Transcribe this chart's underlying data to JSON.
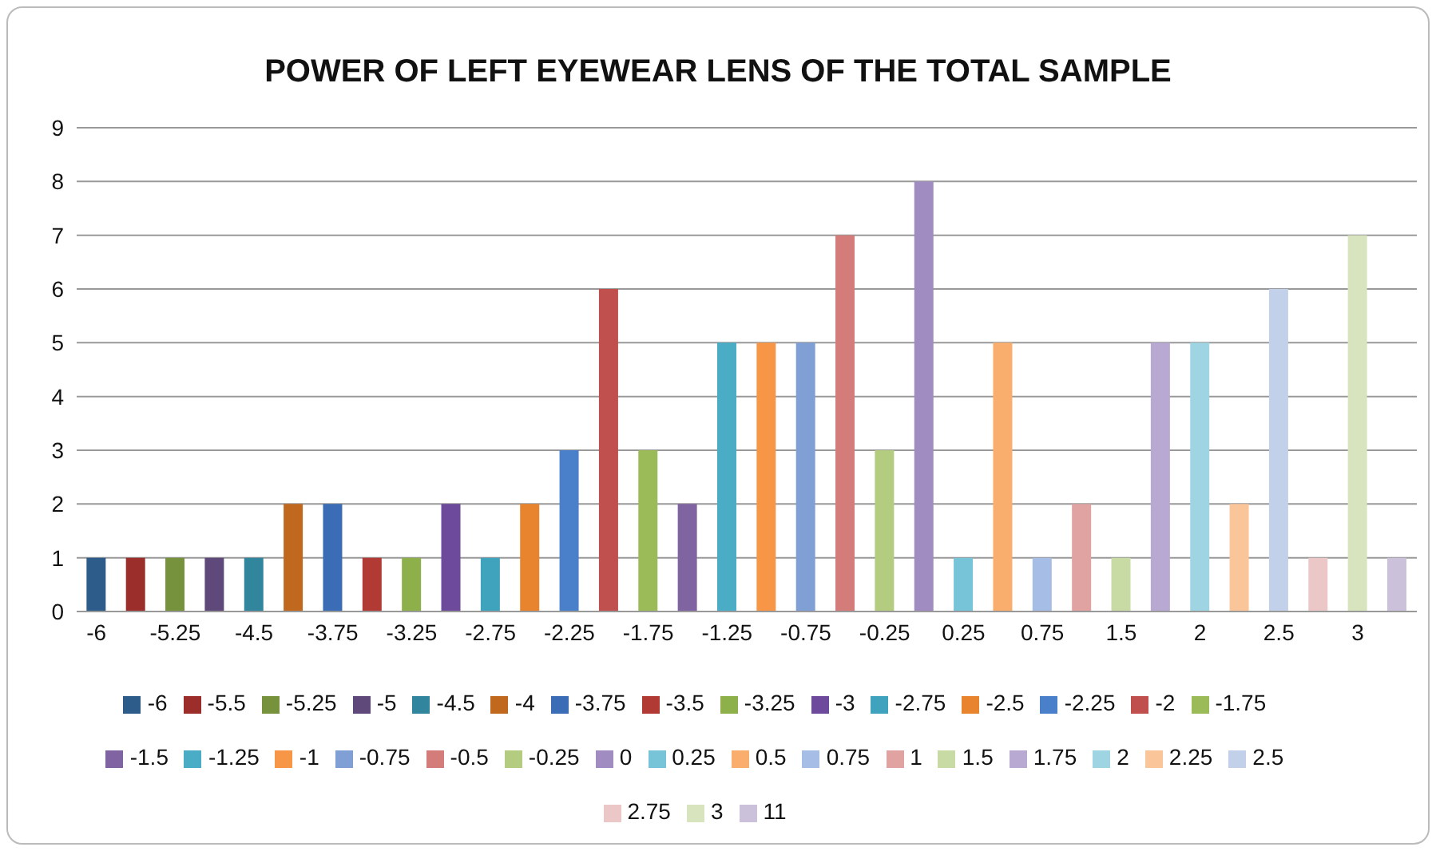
{
  "chart_data": {
    "type": "bar",
    "title": "POWER OF LEFT EYEWEAR LENS OF THE TOTAL SAMPLE",
    "categories": [
      "-6",
      null,
      "-5.25",
      null,
      "-4.5",
      null,
      "-3.75",
      null,
      "-3.25",
      null,
      "-2.75",
      null,
      "-2.25",
      null,
      "-1.75",
      null,
      "-1.25",
      null,
      "-0.75",
      null,
      "-0.25",
      null,
      "0.25",
      null,
      "0.75",
      null,
      "1.5",
      null,
      "2",
      null,
      "2.5",
      null,
      "3",
      null
    ],
    "series": [
      {
        "name": "-6",
        "color": "#2e5c8a",
        "values": [
          1,
          null,
          null,
          null,
          null,
          null,
          null,
          null,
          null,
          null,
          null,
          null,
          null,
          null,
          null,
          null,
          null,
          null,
          null,
          null,
          null,
          null,
          null,
          null,
          null,
          null,
          null,
          null,
          null,
          null,
          null,
          null,
          null,
          null
        ]
      },
      {
        "name": "-5.5",
        "color": "#9b2d2a",
        "values": [
          null,
          1,
          null,
          null,
          null,
          null,
          null,
          null,
          null,
          null,
          null,
          null,
          null,
          null,
          null,
          null,
          null,
          null,
          null,
          null,
          null,
          null,
          null,
          null,
          null,
          null,
          null,
          null,
          null,
          null,
          null,
          null,
          null,
          null
        ]
      },
      {
        "name": "-5.25",
        "color": "#76923c",
        "values": [
          null,
          null,
          1,
          null,
          null,
          null,
          null,
          null,
          null,
          null,
          null,
          null,
          null,
          null,
          null,
          null,
          null,
          null,
          null,
          null,
          null,
          null,
          null,
          null,
          null,
          null,
          null,
          null,
          null,
          null,
          null,
          null,
          null,
          null
        ]
      },
      {
        "name": "-5",
        "color": "#5f497a",
        "values": [
          null,
          null,
          null,
          1,
          null,
          null,
          null,
          null,
          null,
          null,
          null,
          null,
          null,
          null,
          null,
          null,
          null,
          null,
          null,
          null,
          null,
          null,
          null,
          null,
          null,
          null,
          null,
          null,
          null,
          null,
          null,
          null,
          null,
          null
        ]
      },
      {
        "name": "-4.5",
        "color": "#31859c",
        "values": [
          null,
          null,
          null,
          null,
          1,
          null,
          null,
          null,
          null,
          null,
          null,
          null,
          null,
          null,
          null,
          null,
          null,
          null,
          null,
          null,
          null,
          null,
          null,
          null,
          null,
          null,
          null,
          null,
          null,
          null,
          null,
          null,
          null,
          null
        ]
      },
      {
        "name": "-4",
        "color": "#c0681e",
        "values": [
          null,
          null,
          null,
          null,
          null,
          2,
          null,
          null,
          null,
          null,
          null,
          null,
          null,
          null,
          null,
          null,
          null,
          null,
          null,
          null,
          null,
          null,
          null,
          null,
          null,
          null,
          null,
          null,
          null,
          null,
          null,
          null,
          null,
          null
        ]
      },
      {
        "name": "-3.75",
        "color": "#3a6db5",
        "values": [
          null,
          null,
          null,
          null,
          null,
          null,
          2,
          null,
          null,
          null,
          null,
          null,
          null,
          null,
          null,
          null,
          null,
          null,
          null,
          null,
          null,
          null,
          null,
          null,
          null,
          null,
          null,
          null,
          null,
          null,
          null,
          null,
          null,
          null
        ]
      },
      {
        "name": "-3.5",
        "color": "#b23a35",
        "values": [
          null,
          null,
          null,
          null,
          null,
          null,
          null,
          1,
          null,
          null,
          null,
          null,
          null,
          null,
          null,
          null,
          null,
          null,
          null,
          null,
          null,
          null,
          null,
          null,
          null,
          null,
          null,
          null,
          null,
          null,
          null,
          null,
          null,
          null
        ]
      },
      {
        "name": "-3.25",
        "color": "#8db04a",
        "values": [
          null,
          null,
          null,
          null,
          null,
          null,
          null,
          null,
          1,
          null,
          null,
          null,
          null,
          null,
          null,
          null,
          null,
          null,
          null,
          null,
          null,
          null,
          null,
          null,
          null,
          null,
          null,
          null,
          null,
          null,
          null,
          null,
          null,
          null
        ]
      },
      {
        "name": "-3",
        "color": "#6e4a9c",
        "values": [
          null,
          null,
          null,
          null,
          null,
          null,
          null,
          null,
          null,
          2,
          null,
          null,
          null,
          null,
          null,
          null,
          null,
          null,
          null,
          null,
          null,
          null,
          null,
          null,
          null,
          null,
          null,
          null,
          null,
          null,
          null,
          null,
          null,
          null
        ]
      },
      {
        "name": "-2.75",
        "color": "#3fa3bd",
        "values": [
          null,
          null,
          null,
          null,
          null,
          null,
          null,
          null,
          null,
          null,
          1,
          null,
          null,
          null,
          null,
          null,
          null,
          null,
          null,
          null,
          null,
          null,
          null,
          null,
          null,
          null,
          null,
          null,
          null,
          null,
          null,
          null,
          null,
          null
        ]
      },
      {
        "name": "-2.5",
        "color": "#e8832e",
        "values": [
          null,
          null,
          null,
          null,
          null,
          null,
          null,
          null,
          null,
          null,
          null,
          2,
          null,
          null,
          null,
          null,
          null,
          null,
          null,
          null,
          null,
          null,
          null,
          null,
          null,
          null,
          null,
          null,
          null,
          null,
          null,
          null,
          null,
          null
        ]
      },
      {
        "name": "-2.25",
        "color": "#4a7fc9",
        "values": [
          null,
          null,
          null,
          null,
          null,
          null,
          null,
          null,
          null,
          null,
          null,
          null,
          3,
          null,
          null,
          null,
          null,
          null,
          null,
          null,
          null,
          null,
          null,
          null,
          null,
          null,
          null,
          null,
          null,
          null,
          null,
          null,
          null,
          null
        ]
      },
      {
        "name": "-2",
        "color": "#c0504d",
        "values": [
          null,
          null,
          null,
          null,
          null,
          null,
          null,
          null,
          null,
          null,
          null,
          null,
          null,
          6,
          null,
          null,
          null,
          null,
          null,
          null,
          null,
          null,
          null,
          null,
          null,
          null,
          null,
          null,
          null,
          null,
          null,
          null,
          null,
          null
        ]
      },
      {
        "name": "-1.75",
        "color": "#9bbb59",
        "values": [
          null,
          null,
          null,
          null,
          null,
          null,
          null,
          null,
          null,
          null,
          null,
          null,
          null,
          null,
          3,
          null,
          null,
          null,
          null,
          null,
          null,
          null,
          null,
          null,
          null,
          null,
          null,
          null,
          null,
          null,
          null,
          null,
          null,
          null
        ]
      },
      {
        "name": "-1.5",
        "color": "#8064a2",
        "values": [
          null,
          null,
          null,
          null,
          null,
          null,
          null,
          null,
          null,
          null,
          null,
          null,
          null,
          null,
          null,
          2,
          null,
          null,
          null,
          null,
          null,
          null,
          null,
          null,
          null,
          null,
          null,
          null,
          null,
          null,
          null,
          null,
          null,
          null
        ]
      },
      {
        "name": "-1.25",
        "color": "#4bacc6",
        "values": [
          null,
          null,
          null,
          null,
          null,
          null,
          null,
          null,
          null,
          null,
          null,
          null,
          null,
          null,
          null,
          null,
          5,
          null,
          null,
          null,
          null,
          null,
          null,
          null,
          null,
          null,
          null,
          null,
          null,
          null,
          null,
          null,
          null,
          null
        ]
      },
      {
        "name": "-1",
        "color": "#f79646",
        "values": [
          null,
          null,
          null,
          null,
          null,
          null,
          null,
          null,
          null,
          null,
          null,
          null,
          null,
          null,
          null,
          null,
          null,
          5,
          null,
          null,
          null,
          null,
          null,
          null,
          null,
          null,
          null,
          null,
          null,
          null,
          null,
          null,
          null,
          null
        ]
      },
      {
        "name": "-0.75",
        "color": "#7f9fd5",
        "values": [
          null,
          null,
          null,
          null,
          null,
          null,
          null,
          null,
          null,
          null,
          null,
          null,
          null,
          null,
          null,
          null,
          null,
          null,
          5,
          null,
          null,
          null,
          null,
          null,
          null,
          null,
          null,
          null,
          null,
          null,
          null,
          null,
          null,
          null
        ]
      },
      {
        "name": "-0.5",
        "color": "#d47c7a",
        "values": [
          null,
          null,
          null,
          null,
          null,
          null,
          null,
          null,
          null,
          null,
          null,
          null,
          null,
          null,
          null,
          null,
          null,
          null,
          null,
          7,
          null,
          null,
          null,
          null,
          null,
          null,
          null,
          null,
          null,
          null,
          null,
          null,
          null,
          null
        ]
      },
      {
        "name": "-0.25",
        "color": "#b4cc80",
        "values": [
          null,
          null,
          null,
          null,
          null,
          null,
          null,
          null,
          null,
          null,
          null,
          null,
          null,
          null,
          null,
          null,
          null,
          null,
          null,
          null,
          3,
          null,
          null,
          null,
          null,
          null,
          null,
          null,
          null,
          null,
          null,
          null,
          null,
          null
        ]
      },
      {
        "name": "0",
        "color": "#a08cc0",
        "values": [
          null,
          null,
          null,
          null,
          null,
          null,
          null,
          null,
          null,
          null,
          null,
          null,
          null,
          null,
          null,
          null,
          null,
          null,
          null,
          null,
          null,
          8,
          null,
          null,
          null,
          null,
          null,
          null,
          null,
          null,
          null,
          null,
          null,
          null
        ]
      },
      {
        "name": "0.25",
        "color": "#77c3d8",
        "values": [
          null,
          null,
          null,
          null,
          null,
          null,
          null,
          null,
          null,
          null,
          null,
          null,
          null,
          null,
          null,
          null,
          null,
          null,
          null,
          null,
          null,
          null,
          1,
          null,
          null,
          null,
          null,
          null,
          null,
          null,
          null,
          null,
          null,
          null
        ]
      },
      {
        "name": "0.5",
        "color": "#f9ae6e",
        "values": [
          null,
          null,
          null,
          null,
          null,
          null,
          null,
          null,
          null,
          null,
          null,
          null,
          null,
          null,
          null,
          null,
          null,
          null,
          null,
          null,
          null,
          null,
          null,
          5,
          null,
          null,
          null,
          null,
          null,
          null,
          null,
          null,
          null,
          null
        ]
      },
      {
        "name": "0.75",
        "color": "#a6bde6",
        "values": [
          null,
          null,
          null,
          null,
          null,
          null,
          null,
          null,
          null,
          null,
          null,
          null,
          null,
          null,
          null,
          null,
          null,
          null,
          null,
          null,
          null,
          null,
          null,
          null,
          1,
          null,
          null,
          null,
          null,
          null,
          null,
          null,
          null,
          null
        ]
      },
      {
        "name": "1",
        "color": "#e0a3a1",
        "values": [
          null,
          null,
          null,
          null,
          null,
          null,
          null,
          null,
          null,
          null,
          null,
          null,
          null,
          null,
          null,
          null,
          null,
          null,
          null,
          null,
          null,
          null,
          null,
          null,
          null,
          2,
          null,
          null,
          null,
          null,
          null,
          null,
          null,
          null
        ]
      },
      {
        "name": "1.5",
        "color": "#c9dba5",
        "values": [
          null,
          null,
          null,
          null,
          null,
          null,
          null,
          null,
          null,
          null,
          null,
          null,
          null,
          null,
          null,
          null,
          null,
          null,
          null,
          null,
          null,
          null,
          null,
          null,
          null,
          null,
          1,
          null,
          null,
          null,
          null,
          null,
          null,
          null
        ]
      },
      {
        "name": "1.75",
        "color": "#b8a9d3",
        "values": [
          null,
          null,
          null,
          null,
          null,
          null,
          null,
          null,
          null,
          null,
          null,
          null,
          null,
          null,
          null,
          null,
          null,
          null,
          null,
          null,
          null,
          null,
          null,
          null,
          null,
          null,
          null,
          5,
          null,
          null,
          null,
          null,
          null,
          null
        ]
      },
      {
        "name": "2",
        "color": "#9fd5e3",
        "values": [
          null,
          null,
          null,
          null,
          null,
          null,
          null,
          null,
          null,
          null,
          null,
          null,
          null,
          null,
          null,
          null,
          null,
          null,
          null,
          null,
          null,
          null,
          null,
          null,
          null,
          null,
          null,
          null,
          5,
          null,
          null,
          null,
          null,
          null
        ]
      },
      {
        "name": "2.25",
        "color": "#fbc59a",
        "values": [
          null,
          null,
          null,
          null,
          null,
          null,
          null,
          null,
          null,
          null,
          null,
          null,
          null,
          null,
          null,
          null,
          null,
          null,
          null,
          null,
          null,
          null,
          null,
          null,
          null,
          null,
          null,
          null,
          null,
          2,
          null,
          null,
          null,
          null
        ]
      },
      {
        "name": "2.5",
        "color": "#c3d0ea",
        "values": [
          null,
          null,
          null,
          null,
          null,
          null,
          null,
          null,
          null,
          null,
          null,
          null,
          null,
          null,
          null,
          null,
          null,
          null,
          null,
          null,
          null,
          null,
          null,
          null,
          null,
          null,
          null,
          null,
          null,
          null,
          6,
          null,
          null,
          null
        ]
      },
      {
        "name": "2.75",
        "color": "#ebc8c7",
        "values": [
          null,
          null,
          null,
          null,
          null,
          null,
          null,
          null,
          null,
          null,
          null,
          null,
          null,
          null,
          null,
          null,
          null,
          null,
          null,
          null,
          null,
          null,
          null,
          null,
          null,
          null,
          null,
          null,
          null,
          null,
          null,
          1,
          null,
          null
        ]
      },
      {
        "name": "3",
        "color": "#d7e4bd",
        "values": [
          null,
          null,
          null,
          null,
          null,
          null,
          null,
          null,
          null,
          null,
          null,
          null,
          null,
          null,
          null,
          null,
          null,
          null,
          null,
          null,
          null,
          null,
          null,
          null,
          null,
          null,
          null,
          null,
          null,
          null,
          null,
          null,
          7,
          null
        ]
      },
      {
        "name": "11",
        "color": "#ccc1da",
        "values": [
          null,
          null,
          null,
          null,
          null,
          null,
          null,
          null,
          null,
          null,
          null,
          null,
          null,
          null,
          null,
          null,
          null,
          null,
          null,
          null,
          null,
          null,
          null,
          null,
          null,
          null,
          null,
          null,
          null,
          null,
          null,
          null,
          null,
          1
        ]
      }
    ],
    "ylim": [
      0,
      9
    ],
    "yticks": [
      0,
      1,
      2,
      3,
      4,
      5,
      6,
      7,
      8,
      9
    ],
    "grid": "y",
    "legend": "bottom"
  }
}
